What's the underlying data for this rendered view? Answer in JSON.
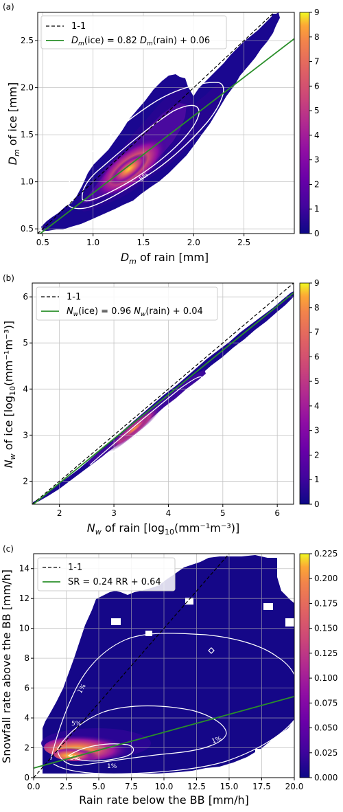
{
  "chart_data": [
    {
      "type": "heatmap",
      "panel_label": "(a)",
      "xlabel_main": "D",
      "xlabel_sub": "m",
      "xlabel_rest": " of rain [mm]",
      "ylabel_main": "D",
      "ylabel_sub": "m",
      "ylabel_rest": " of ice [mm]",
      "xlim": [
        0.45,
        3.0
      ],
      "ylim": [
        0.45,
        2.8
      ],
      "xticks": [
        "0.5",
        "1.0",
        "1.5",
        "2.0",
        "2.5"
      ],
      "xtick_values": [
        0.5,
        1.0,
        1.5,
        2.0,
        2.5
      ],
      "yticks": [
        "0.5",
        "1.0",
        "1.5",
        "2.0",
        "2.5"
      ],
      "ytick_values": [
        0.5,
        1.0,
        1.5,
        2.0,
        2.5
      ],
      "colorbar_ticks": [
        "0",
        "1",
        "2",
        "3",
        "4",
        "5",
        "6",
        "7",
        "8",
        "9"
      ],
      "colorbar_range": [
        0,
        9
      ],
      "legend": [
        {
          "label": "1-1",
          "style": "dashed",
          "color": "#000000"
        },
        {
          "label": "D_m(ice) = 0.82 D_m(rain) + 0.06",
          "style": "solid",
          "color": "#2ca02c"
        }
      ],
      "legend_text_parts": {
        "a": "D",
        "b": "m",
        "c": "(ice) = 0.82 ",
        "d": "D",
        "e": "m",
        "f": "(rain) + 0.06"
      },
      "fit": {
        "slope": 0.82,
        "intercept": 0.06,
        "x_range": [
          0.45,
          3.0
        ]
      },
      "contour_labels": [
        "5%",
        "1%"
      ],
      "grid": true
    },
    {
      "type": "heatmap",
      "panel_label": "(b)",
      "xlabel_text": "N",
      "xlabel_sub": "w",
      "xlabel_rest": " of rain [log",
      "xlabel_sub2": "10",
      "xlabel_rest2": "(mm⁻¹m⁻³)]",
      "ylabel_text": "N",
      "ylabel_sub": "w",
      "ylabel_rest": " of ice [log",
      "ylabel_sub2": "10",
      "ylabel_rest2": "(mm⁻¹m⁻³)]",
      "xlim": [
        1.5,
        6.3
      ],
      "ylim": [
        1.5,
        6.3
      ],
      "xticks": [
        "2",
        "3",
        "4",
        "5",
        "6"
      ],
      "xtick_values": [
        2,
        3,
        4,
        5,
        6
      ],
      "yticks": [
        "2",
        "3",
        "4",
        "5",
        "6"
      ],
      "ytick_values": [
        2,
        3,
        4,
        5,
        6
      ],
      "colorbar_ticks": [
        "0",
        "1",
        "2",
        "3",
        "4",
        "5",
        "6",
        "7",
        "8",
        "9"
      ],
      "colorbar_range": [
        0,
        9
      ],
      "legend": [
        {
          "label": "1-1",
          "style": "dashed",
          "color": "#000000"
        },
        {
          "label": "N_w(ice) = 0.96 N_w(rain) + 0.04",
          "style": "solid",
          "color": "#2ca02c"
        }
      ],
      "legend_text_parts": {
        "a": "N",
        "b": "w",
        "c": "(ice) = 0.96 ",
        "d": "N",
        "e": "w",
        "f": "(rain) + 0.04"
      },
      "fit": {
        "slope": 0.96,
        "intercept": 0.04,
        "x_range": [
          1.5,
          6.3
        ]
      },
      "grid": true
    },
    {
      "type": "heatmap",
      "panel_label": "(c)",
      "xlabel": "Rain rate below the BB [mm/h]",
      "ylabel": "Snowfall rate above the BB [mm/h]",
      "xlim": [
        0,
        20
      ],
      "ylim": [
        0,
        15
      ],
      "xticks": [
        "0.0",
        "2.5",
        "5.0",
        "7.5",
        "10.0",
        "12.5",
        "15.0",
        "17.5",
        "20.0"
      ],
      "xtick_values": [
        0,
        2.5,
        5,
        7.5,
        10,
        12.5,
        15,
        17.5,
        20
      ],
      "yticks": [
        "0",
        "2",
        "4",
        "6",
        "8",
        "10",
        "12",
        "14"
      ],
      "ytick_values": [
        0,
        2,
        4,
        6,
        8,
        10,
        12,
        14
      ],
      "colorbar_ticks": [
        "0.000",
        "0.025",
        "0.050",
        "0.075",
        "0.100",
        "0.125",
        "0.150",
        "0.175",
        "0.200",
        "0.225"
      ],
      "colorbar_range": [
        0,
        0.225
      ],
      "legend": [
        {
          "label": "1-1",
          "style": "dashed",
          "color": "#000000"
        },
        {
          "label": "SR = 0.24 RR + 0.64",
          "style": "solid",
          "color": "#2ca02c"
        }
      ],
      "fit": {
        "slope": 0.24,
        "intercept": 0.64,
        "x_range": [
          0,
          20
        ]
      },
      "contour_labels": [
        "1%",
        "5%",
        "1%",
        "5%",
        "1%"
      ],
      "grid": true
    }
  ]
}
